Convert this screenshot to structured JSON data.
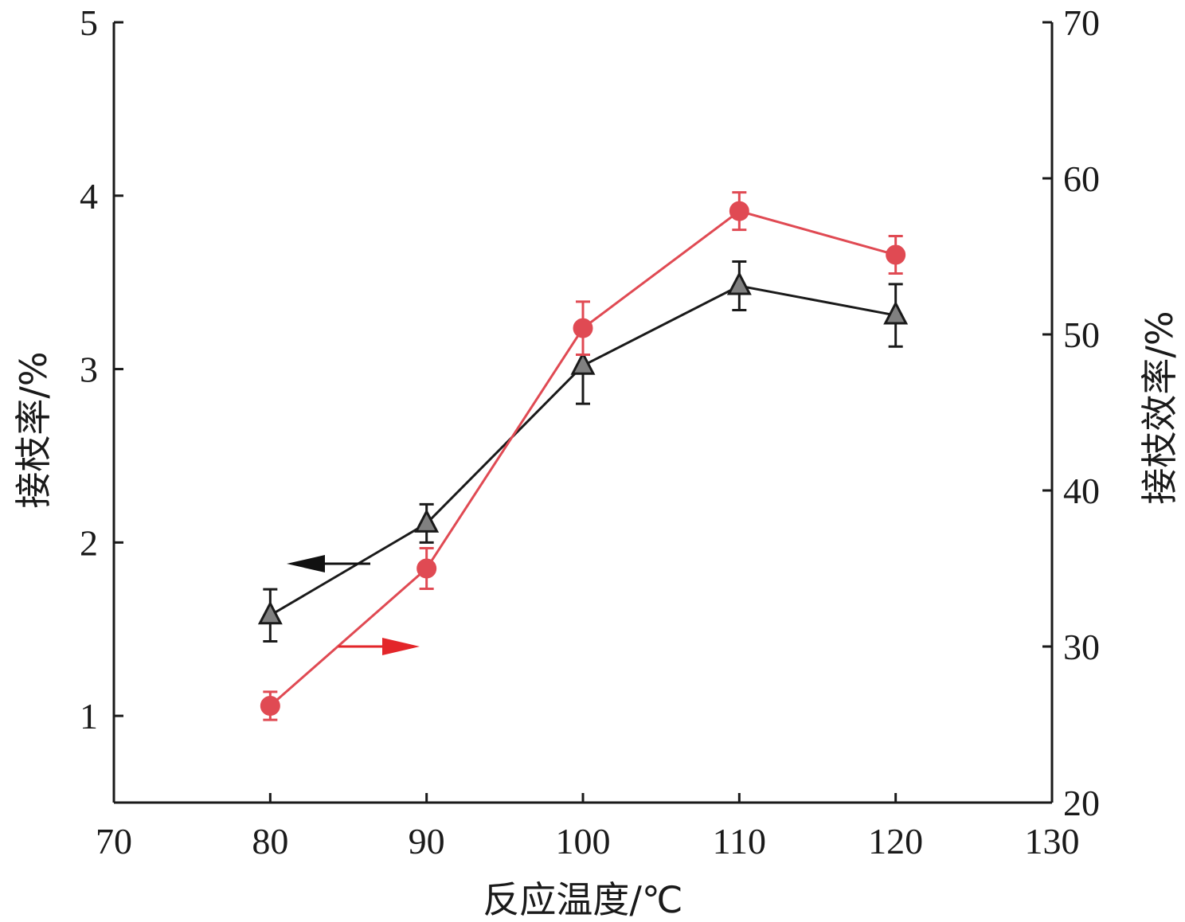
{
  "chart_data": {
    "type": "line",
    "x": [
      80,
      90,
      100,
      110,
      120
    ],
    "xlabel": "反应温度/℃",
    "xlim": [
      70,
      130
    ],
    "xticks": [
      70,
      80,
      90,
      100,
      110,
      120,
      130
    ],
    "ylabel_left": "接枝率/%",
    "ylim_left": [
      0.5,
      5
    ],
    "yticks_left": [
      1,
      2,
      3,
      4,
      5
    ],
    "ylabel_right": "接枝效率/%",
    "ylim_right": [
      20,
      70
    ],
    "yticks_right": [
      20,
      30,
      40,
      50,
      60,
      70
    ],
    "grid": false,
    "series": [
      {
        "axis": "left",
        "marker": "triangle",
        "color": "#1a1a1a",
        "marker_fill": "#808080",
        "values": [
          1.58,
          2.11,
          3.02,
          3.48,
          3.31
        ],
        "errors": [
          0.15,
          0.11,
          0.22,
          0.14,
          0.18
        ],
        "arrow": "left"
      },
      {
        "axis": "right",
        "marker": "circle",
        "color": "#e04a53",
        "marker_fill": "#e04a53",
        "values": [
          26.2,
          35.0,
          50.4,
          57.9,
          55.1
        ],
        "errors": [
          0.9,
          1.3,
          1.7,
          1.2,
          1.2
        ],
        "arrow": "right"
      }
    ],
    "arrow_colors": {
      "left": "#111111",
      "right": "#e3262a"
    }
  }
}
